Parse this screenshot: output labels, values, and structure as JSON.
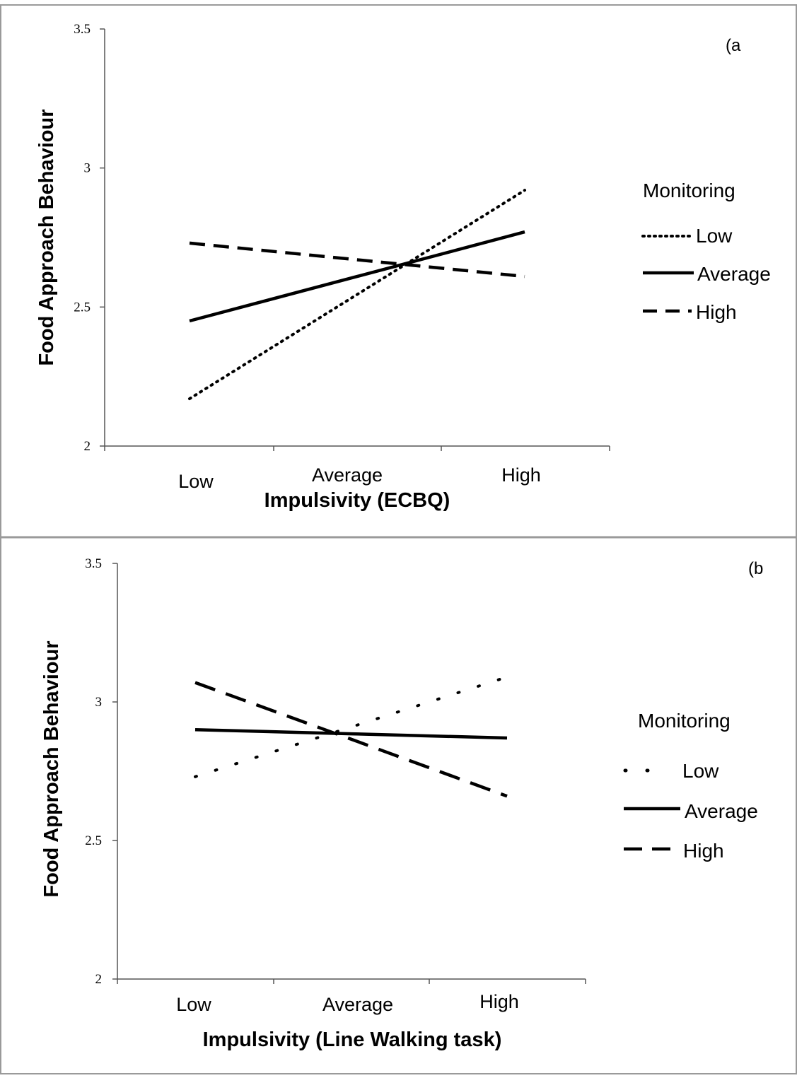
{
  "chart_data": [
    {
      "type": "line",
      "panel_label": "(a",
      "xlabel": "Impulsivity (ECBQ)",
      "ylabel": "Food Approach Behaviour",
      "categories": [
        "Low",
        "Average",
        "High"
      ],
      "ylim": [
        2,
        3.5
      ],
      "yticks": [
        "2",
        "2.5",
        "3",
        "3.5"
      ],
      "legend_title": "Monitoring",
      "legend_position": "right",
      "grid": false,
      "series": [
        {
          "name": "Low",
          "style": "dotted",
          "values": [
            2.17,
            2.545,
            2.92
          ]
        },
        {
          "name": "Average",
          "style": "solid",
          "values": [
            2.45,
            2.61,
            2.77
          ]
        },
        {
          "name": "High",
          "style": "dashed",
          "values": [
            2.73,
            2.67,
            2.61
          ]
        }
      ]
    },
    {
      "type": "line",
      "panel_label": "(b",
      "xlabel": "Impulsivity (Line Walking task)",
      "ylabel": "Food Approach Behaviour",
      "categories": [
        "Low",
        "Average",
        "High"
      ],
      "ylim": [
        2,
        3.5
      ],
      "yticks": [
        "2",
        "2.5",
        "3",
        "3.5"
      ],
      "legend_title": "Monitoring",
      "legend_position": "right",
      "grid": false,
      "series": [
        {
          "name": "Low",
          "style": "dotted",
          "values": [
            2.73,
            2.91,
            3.09
          ]
        },
        {
          "name": "Average",
          "style": "solid",
          "values": [
            2.9,
            2.885,
            2.87
          ]
        },
        {
          "name": "High",
          "style": "dashed",
          "values": [
            3.07,
            2.865,
            2.66
          ]
        }
      ]
    }
  ]
}
